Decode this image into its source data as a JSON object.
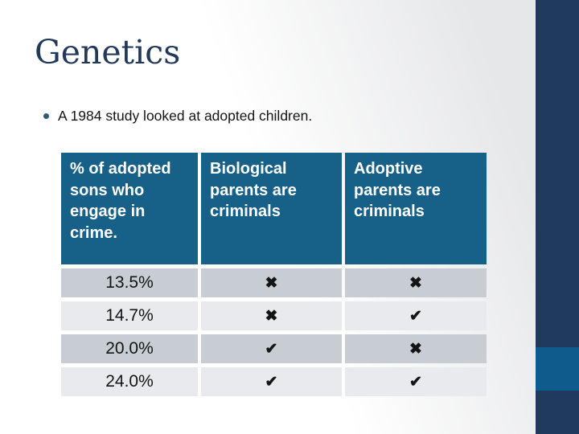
{
  "slide": {
    "title": "Genetics",
    "bullet_text": "A 1984 study looked at adopted children."
  },
  "table": {
    "columns": [
      {
        "header": "% of adopted sons who engage in crime."
      },
      {
        "header": "Biological parents are criminals"
      },
      {
        "header": "Adoptive parents are criminals"
      }
    ],
    "rows": [
      {
        "percent": "13.5%",
        "biological_mark": "✖",
        "adoptive_mark": "✖"
      },
      {
        "percent": "14.7%",
        "biological_mark": "✖",
        "adoptive_mark": "✔"
      },
      {
        "percent": "20.0%",
        "biological_mark": "✔",
        "adoptive_mark": "✖"
      },
      {
        "percent": "24.0%",
        "biological_mark": "✔",
        "adoptive_mark": "✔"
      }
    ]
  },
  "colors": {
    "title-text": "#22395C",
    "body-text": "#141414",
    "accent-bar": "#1F3A5C",
    "accent-band": "#0F5C8C",
    "header-bg": "#176087",
    "row-dark": "#C8CDD4",
    "row-light": "#E9EAED",
    "bullet-dot": "#2E5B74",
    "bg-gray": "#E6E7E9"
  }
}
